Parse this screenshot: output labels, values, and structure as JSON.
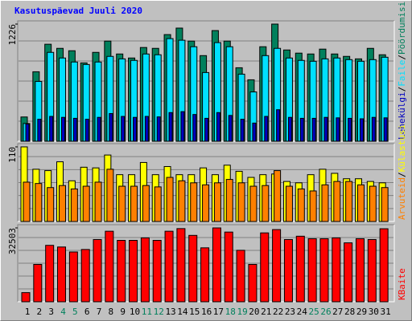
{
  "chart_data": {
    "type": "bar",
    "title": "Kasutuspäevad Juuli 2020",
    "categories": [
      "1",
      "2",
      "3",
      "4",
      "5",
      "6",
      "7",
      "8",
      "9",
      "10",
      "11",
      "12",
      "13",
      "14",
      "15",
      "16",
      "17",
      "18",
      "19",
      "20",
      "21",
      "22",
      "23",
      "24",
      "25",
      "26",
      "27",
      "28",
      "29",
      "30",
      "31"
    ],
    "category_colors": [
      "#000000",
      "#000000",
      "#000000",
      "#00805c",
      "#00805c",
      "#000000",
      "#000000",
      "#000000",
      "#000000",
      "#000000",
      "#00805c",
      "#00805c",
      "#000000",
      "#000000",
      "#000000",
      "#000000",
      "#000000",
      "#00805c",
      "#00805c",
      "#000000",
      "#000000",
      "#000000",
      "#000000",
      "#000000",
      "#00805c",
      "#00805c",
      "#000000",
      "#000000",
      "#000000",
      "#000000",
      "#000000"
    ],
    "legend_separator": "/",
    "panels": [
      {
        "ylim": [
          0,
          1226
        ],
        "yticks": [
          1226
        ],
        "grid": true,
        "series": [
          {
            "name": "Pöördumisi",
            "color": "#00805c",
            "values": [
              254,
              727,
              1015,
              972,
              947,
              820,
              930,
              1048,
              913,
              871,
              981,
              972,
              1116,
              1184,
              1048,
              896,
              1158,
              1048,
              769,
              643,
              989,
              1226,
              955,
              922,
              913,
              964,
              913,
              888,
              862,
              972,
              905
            ]
          },
          {
            "name": "Faile",
            "color": "#00e0ff",
            "values": [
              186,
              626,
              930,
              871,
              829,
              803,
              829,
              888,
              862,
              846,
              913,
              905,
              1074,
              1057,
              989,
              719,
              1032,
              989,
              702,
              516,
              896,
              972,
              871,
              846,
              837,
              862,
              871,
              854,
              837,
              854,
              879
            ]
          },
          {
            "name": "Lehekülgi",
            "color": "#0000c0",
            "values": [
              180,
              230,
              260,
              250,
              240,
              230,
              250,
              290,
              260,
              250,
              260,
              255,
              300,
              310,
              280,
              240,
              300,
              270,
              230,
              190,
              260,
              330,
              250,
              240,
              240,
              250,
              245,
              240,
              235,
              250,
              245
            ]
          }
        ]
      },
      {
        "ylim": [
          0,
          110
        ],
        "yticks": [
          110
        ],
        "grid": true,
        "series": [
          {
            "name": "Külastusi",
            "color": "#ffff00",
            "values": [
              110,
              77,
              75,
              88,
              60,
              80,
              79,
              98,
              69,
              69,
              87,
              69,
              81,
              69,
              69,
              79,
              69,
              83,
              74,
              65,
              69,
              70,
              59,
              57,
              69,
              77,
              71,
              63,
              63,
              59,
              57
            ]
          },
          {
            "name": "Arvuteid",
            "color": "#ff8000",
            "values": [
              58,
              56,
              50,
              53,
              48,
              52,
              58,
              77,
              52,
              52,
              53,
              51,
              65,
              60,
              57,
              54,
              57,
              62,
              57,
              52,
              53,
              75,
              52,
              48,
              45,
              54,
              59,
              59,
              54,
              52,
              50
            ]
          }
        ]
      },
      {
        "ylim": [
          0,
          32503
        ],
        "yticks": [
          32503
        ],
        "grid": true,
        "series": [
          {
            "name": "KBaite",
            "color": "#ff0000",
            "values": [
              4017,
              16434,
              24833,
              24103,
              21912,
              23008,
              27390,
              31042,
              27025,
              27025,
              28121,
              27025,
              31042,
              32200,
              29216,
              23738,
              32503,
              30677,
              22642,
              16434,
              30312,
              31773,
              27390,
              28851,
              27755,
              27755,
              28121,
              25929,
              27755,
              27390,
              32137
            ]
          }
        ]
      }
    ]
  }
}
